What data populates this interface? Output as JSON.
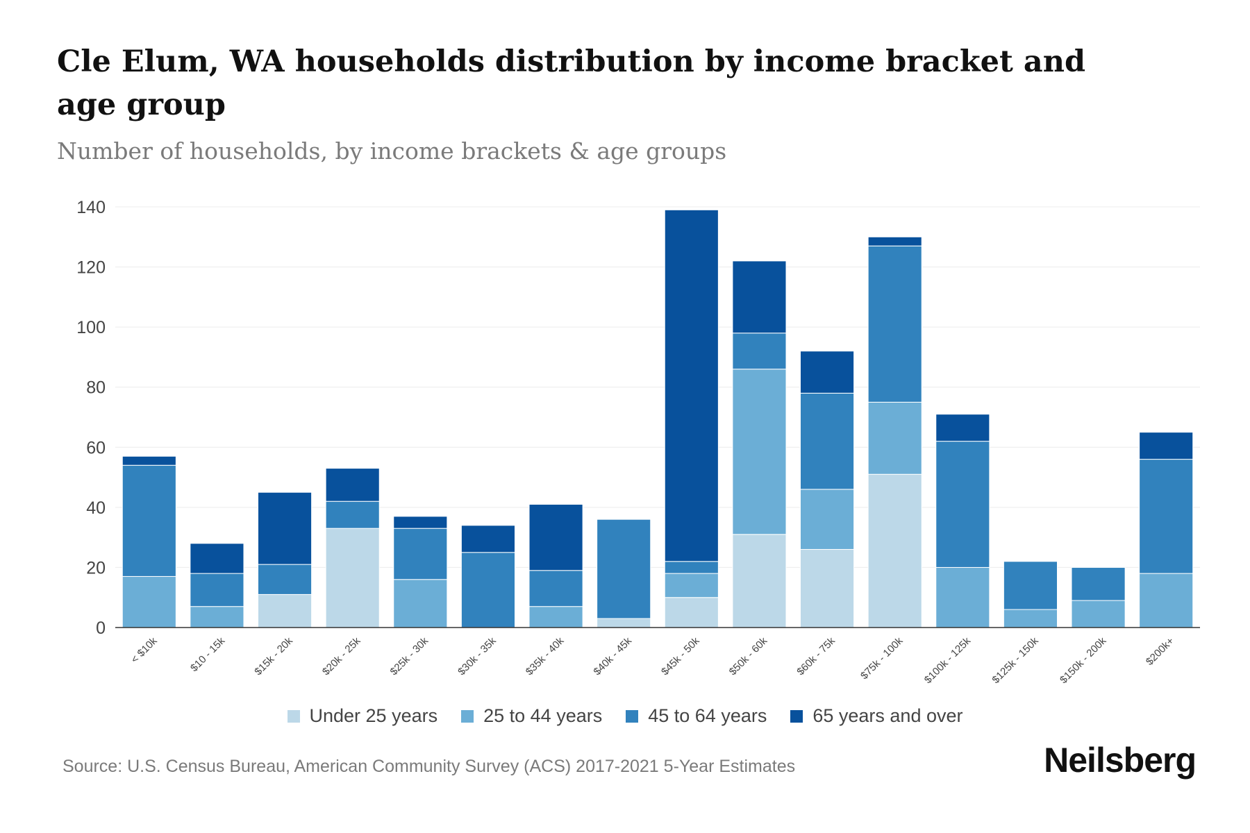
{
  "chart_data": {
    "type": "bar",
    "stacked": true,
    "title": "Cle Elum, WA households distribution by income bracket and age group",
    "subtitle": "Number of households, by income brackets & age groups",
    "xlabel": "",
    "ylabel": "",
    "ylim": [
      0,
      140
    ],
    "yticks": [
      0,
      20,
      40,
      60,
      80,
      100,
      120,
      140
    ],
    "grid": true,
    "legend_position": "bottom",
    "categories": [
      "< $10k",
      "$10 - 15k",
      "$15k - 20k",
      "$20k - 25k",
      "$25k - 30k",
      "$30k - 35k",
      "$35k - 40k",
      "$40k - 45k",
      "$45k - 50k",
      "$50k - 60k",
      "$60k - 75k",
      "$75k - 100k",
      "$100k - 125k",
      "$125k - 150k",
      "$150k - 200k",
      "$200k+"
    ],
    "series": [
      {
        "name": "Under 25 years",
        "color": "#bcd8e8",
        "values": [
          0,
          0,
          11,
          33,
          0,
          0,
          0,
          3,
          10,
          31,
          26,
          51,
          0,
          0,
          0,
          0
        ]
      },
      {
        "name": "25 to 44 years",
        "color": "#6baed6",
        "values": [
          17,
          7,
          0,
          0,
          16,
          0,
          7,
          0,
          8,
          55,
          20,
          24,
          20,
          6,
          9,
          18
        ]
      },
      {
        "name": "45 to 64 years",
        "color": "#3182bd",
        "values": [
          37,
          11,
          10,
          9,
          17,
          25,
          12,
          33,
          4,
          12,
          32,
          52,
          42,
          16,
          11,
          38
        ]
      },
      {
        "name": "65 years and over",
        "color": "#08519c",
        "values": [
          3,
          10,
          24,
          11,
          4,
          9,
          22,
          0,
          117,
          24,
          14,
          3,
          9,
          0,
          0,
          9
        ]
      }
    ]
  },
  "source": "Source: U.S. Census Bureau, American Community Survey (ACS) 2017-2021 5-Year Estimates",
  "brand": "Neilsberg"
}
